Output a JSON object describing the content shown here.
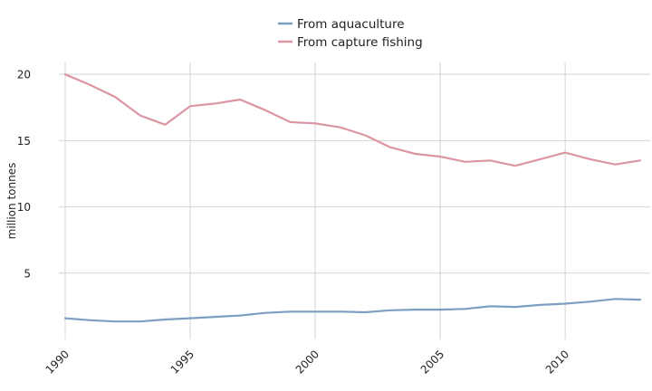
{
  "chart_data": {
    "type": "line",
    "title": "",
    "xlabel": "",
    "ylabel": "million tonnes",
    "x": [
      1990,
      1991,
      1992,
      1993,
      1994,
      1995,
      1996,
      1997,
      1998,
      1999,
      2000,
      2001,
      2002,
      2003,
      2004,
      2005,
      2006,
      2007,
      2008,
      2009,
      2010,
      2011,
      2012,
      2013
    ],
    "xticks": [
      1990,
      1995,
      2000,
      2005,
      2010
    ],
    "yticks": [
      5,
      10,
      15,
      20
    ],
    "xlim": [
      1990,
      2013.4
    ],
    "ylim": [
      0,
      20.9
    ],
    "grid": true,
    "legend": "top-center",
    "series": [
      {
        "name": "From aquaculture",
        "color": "#7c9fc3",
        "values": [
          1.6,
          1.45,
          1.35,
          1.35,
          1.5,
          1.6,
          1.7,
          1.8,
          2.0,
          2.1,
          2.1,
          2.1,
          2.05,
          2.2,
          2.25,
          2.25,
          2.3,
          2.5,
          2.45,
          2.6,
          2.7,
          2.85,
          3.05,
          3.0
        ]
      },
      {
        "name": "From capture fishing",
        "color": "#dc95a3",
        "values": [
          20.0,
          19.2,
          18.3,
          16.9,
          16.2,
          17.6,
          17.8,
          18.1,
          17.3,
          16.4,
          16.3,
          16.0,
          15.4,
          14.5,
          14.0,
          13.8,
          13.4,
          13.5,
          13.1,
          13.6,
          14.1,
          13.6,
          13.2,
          13.5
        ]
      }
    ]
  }
}
